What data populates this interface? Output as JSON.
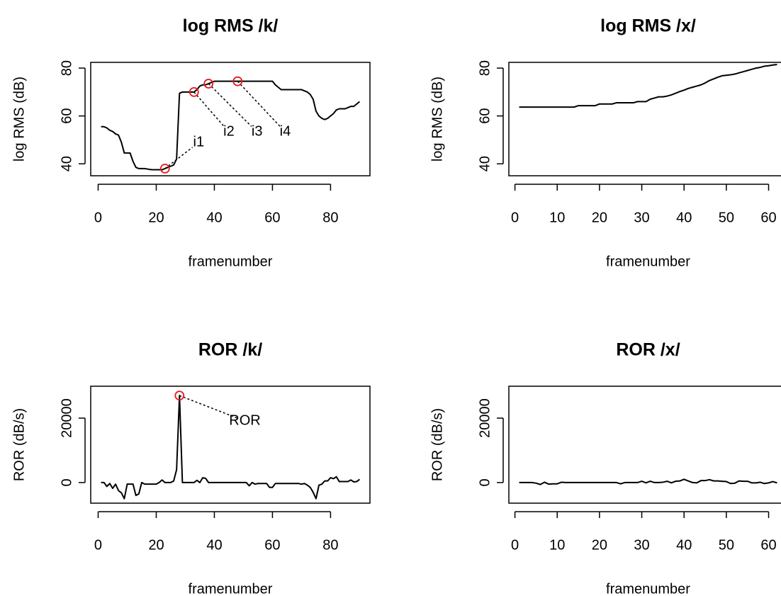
{
  "chart_data": [
    {
      "type": "line",
      "title": "log RMS /k/",
      "x_label": "framenumber",
      "y_label": "log RMS (dB)",
      "x": [
        1,
        2,
        3,
        4,
        5,
        6,
        7,
        8,
        9,
        10,
        11,
        12,
        13,
        14,
        15,
        16,
        17,
        18,
        19,
        20,
        21,
        22,
        23,
        24,
        25,
        26,
        27,
        28,
        29,
        30,
        31,
        32,
        33,
        34,
        35,
        36,
        37,
        38,
        39,
        40,
        41,
        42,
        43,
        44,
        45,
        46,
        47,
        48,
        49,
        50,
        51,
        52,
        53,
        54,
        55,
        56,
        57,
        58,
        59,
        60,
        61,
        62,
        63,
        64,
        65,
        66,
        67,
        68,
        69,
        70,
        71,
        72,
        73,
        74,
        75,
        76,
        77,
        78,
        79,
        80,
        81,
        82,
        83,
        84,
        85,
        86,
        87,
        88,
        89,
        90
      ],
      "values": [
        55.5,
        55.5,
        55,
        54,
        53.5,
        52.5,
        52,
        49,
        44.5,
        44.5,
        44.5,
        41,
        38.5,
        38,
        38,
        38,
        37.8,
        37.6,
        37.5,
        37.5,
        37.5,
        37.5,
        38,
        38.5,
        39,
        39.5,
        42,
        69.5,
        70,
        70,
        70,
        70,
        70,
        71,
        72.5,
        73,
        73,
        73.5,
        74,
        74.5,
        74.5,
        74.5,
        74.5,
        74.5,
        74.5,
        74.5,
        74.5,
        74.5,
        74.5,
        74.5,
        74.5,
        74.5,
        74.5,
        74.5,
        74.5,
        74.5,
        74.5,
        74.5,
        74.5,
        74.5,
        73,
        72,
        71,
        71,
        71,
        71,
        71,
        71,
        71,
        71,
        70.5,
        70,
        69,
        67,
        62,
        60,
        59,
        58.5,
        59,
        60,
        61,
        62.5,
        63,
        63,
        63,
        63.5,
        64,
        64,
        65,
        66
      ],
      "color": "#000000",
      "highlight_color": "#e8191c",
      "xlim": [
        -2.56,
        93.56
      ],
      "xticks": [
        0,
        20,
        40,
        60,
        80
      ],
      "ylim": [
        35,
        82.4
      ],
      "yticks": [
        40,
        60,
        80
      ],
      "annotations": [
        {
          "label": "i1",
          "x": 23,
          "y": 38,
          "label_x": 34.6,
          "label_y": 48.9
        },
        {
          "label": "i2",
          "x": 33,
          "y": 70,
          "label_x": 45,
          "label_y": 53.3
        },
        {
          "label": "i3",
          "x": 38,
          "y": 73.5,
          "label_x": 54.7,
          "label_y": 53.3
        },
        {
          "label": "i4",
          "x": 48,
          "y": 74.5,
          "label_x": 64.4,
          "label_y": 53.3
        }
      ]
    },
    {
      "type": "line",
      "title": "log RMS /x/",
      "x_label": "framenumber",
      "y_label": "log RMS (dB)",
      "x": [
        1,
        2,
        3,
        4,
        5,
        6,
        7,
        8,
        9,
        10,
        11,
        12,
        13,
        14,
        15,
        16,
        17,
        18,
        19,
        20,
        21,
        22,
        23,
        24,
        25,
        26,
        27,
        28,
        29,
        30,
        31,
        32,
        33,
        34,
        35,
        36,
        37,
        38,
        39,
        40,
        41,
        42,
        43,
        44,
        45,
        46,
        47,
        48,
        49,
        50,
        51,
        52,
        53,
        54,
        55,
        56,
        57,
        58,
        59,
        60,
        61,
        62
      ],
      "values": [
        63.7,
        63.7,
        63.7,
        63.7,
        63.7,
        63.7,
        63.7,
        63.7,
        63.7,
        63.7,
        63.7,
        63.7,
        63.7,
        63.7,
        64.3,
        64.3,
        64.3,
        64.3,
        64.3,
        65,
        65,
        65,
        65,
        65.5,
        65.5,
        65.5,
        65.5,
        65.5,
        66,
        66,
        66,
        67,
        67.5,
        68,
        68,
        68.3,
        68.8,
        69.5,
        70.2,
        70.8,
        71.5,
        72,
        72.5,
        73,
        73.8,
        74.8,
        75.5,
        76.2,
        76.8,
        77,
        77.2,
        77.5,
        78,
        78.5,
        79,
        79.5,
        80,
        80.3,
        80.8,
        81,
        81.3,
        81.5
      ],
      "color": "#000000",
      "xlim": [
        -1.44,
        64.44
      ],
      "xticks": [
        0,
        10,
        20,
        30,
        40,
        50,
        60
      ],
      "ylim": [
        35,
        82.4
      ],
      "yticks": [
        40,
        60,
        80
      ]
    },
    {
      "type": "line",
      "title": "ROR /k/",
      "x_label": "framenumber",
      "y_label": "ROR (dB/s)",
      "x": [
        1,
        2,
        3,
        4,
        5,
        6,
        7,
        8,
        9,
        10,
        11,
        12,
        13,
        14,
        15,
        16,
        17,
        18,
        19,
        20,
        21,
        22,
        23,
        24,
        25,
        26,
        27,
        28,
        29,
        30,
        31,
        32,
        33,
        34,
        35,
        36,
        37,
        38,
        39,
        40,
        41,
        42,
        43,
        44,
        45,
        46,
        47,
        48,
        49,
        50,
        51,
        52,
        53,
        54,
        55,
        56,
        57,
        58,
        59,
        60,
        61,
        62,
        63,
        64,
        65,
        66,
        67,
        68,
        69,
        70,
        71,
        72,
        73,
        74,
        75,
        76,
        77,
        78,
        79,
        80,
        81,
        82,
        83,
        84,
        85,
        86,
        87,
        88,
        89,
        90
      ],
      "values": [
        0,
        0,
        -1200,
        -300,
        -1800,
        -500,
        -2500,
        -3200,
        -5000,
        -500,
        -500,
        -500,
        -4000,
        -3500,
        0,
        -500,
        -500,
        -500,
        -500,
        -500,
        0,
        800,
        0,
        0,
        0,
        500,
        4000,
        27000,
        0,
        0,
        0,
        0,
        0,
        700,
        0,
        1500,
        1300,
        0,
        0,
        0,
        0,
        0,
        0,
        0,
        0,
        0,
        0,
        0,
        0,
        0,
        0,
        -1000,
        0,
        -500,
        -300,
        -300,
        -300,
        -300,
        -1500,
        -1500,
        -300,
        -300,
        -300,
        -300,
        -300,
        -300,
        -300,
        -300,
        -300,
        -500,
        -300,
        -800,
        -1500,
        -3000,
        -5000,
        -800,
        -500,
        500,
        500,
        1500,
        1200,
        1800,
        300,
        300,
        300,
        300,
        800,
        200,
        300,
        1000
      ],
      "color": "#000000",
      "highlight_color": "#e8191c",
      "xlim": [
        -2.56,
        93.56
      ],
      "xticks": [
        0,
        20,
        40,
        60,
        80
      ],
      "ylim": [
        -6400,
        29900
      ],
      "yticks": [
        0,
        20000
      ],
      "annotations": [
        {
          "label": "ROR",
          "x": 28,
          "y": 27000,
          "label_x": 50.5,
          "label_y": 19100
        }
      ]
    },
    {
      "type": "line",
      "title": "ROR /x/",
      "x_label": "framenumber",
      "y_label": "ROR (dB/s)",
      "x": [
        1,
        2,
        3,
        4,
        5,
        6,
        7,
        8,
        9,
        10,
        11,
        12,
        13,
        14,
        15,
        16,
        17,
        18,
        19,
        20,
        21,
        22,
        23,
        24,
        25,
        26,
        27,
        28,
        29,
        30,
        31,
        32,
        33,
        34,
        35,
        36,
        37,
        38,
        39,
        40,
        41,
        42,
        43,
        44,
        45,
        46,
        47,
        48,
        49,
        50,
        51,
        52,
        53,
        54,
        55,
        56,
        57,
        58,
        59,
        60,
        61,
        62
      ],
      "values": [
        0,
        0,
        0,
        0,
        -200,
        -600,
        100,
        -500,
        -400,
        -400,
        100,
        0,
        0,
        0,
        0,
        0,
        0,
        0,
        0,
        0,
        0,
        0,
        0,
        0,
        -400,
        0,
        0,
        0,
        0,
        400,
        -100,
        400,
        0,
        0,
        100,
        400,
        -100,
        400,
        500,
        1000,
        500,
        0,
        -100,
        600,
        600,
        900,
        500,
        500,
        400,
        300,
        -300,
        -200,
        500,
        400,
        400,
        -100,
        -100,
        100,
        -300,
        -100,
        300,
        -100
      ],
      "color": "#000000",
      "xlim": [
        -1.44,
        64.44
      ],
      "xticks": [
        0,
        10,
        20,
        30,
        40,
        50,
        60
      ],
      "ylim": [
        -6400,
        29900
      ],
      "yticks": [
        0,
        20000
      ]
    }
  ]
}
